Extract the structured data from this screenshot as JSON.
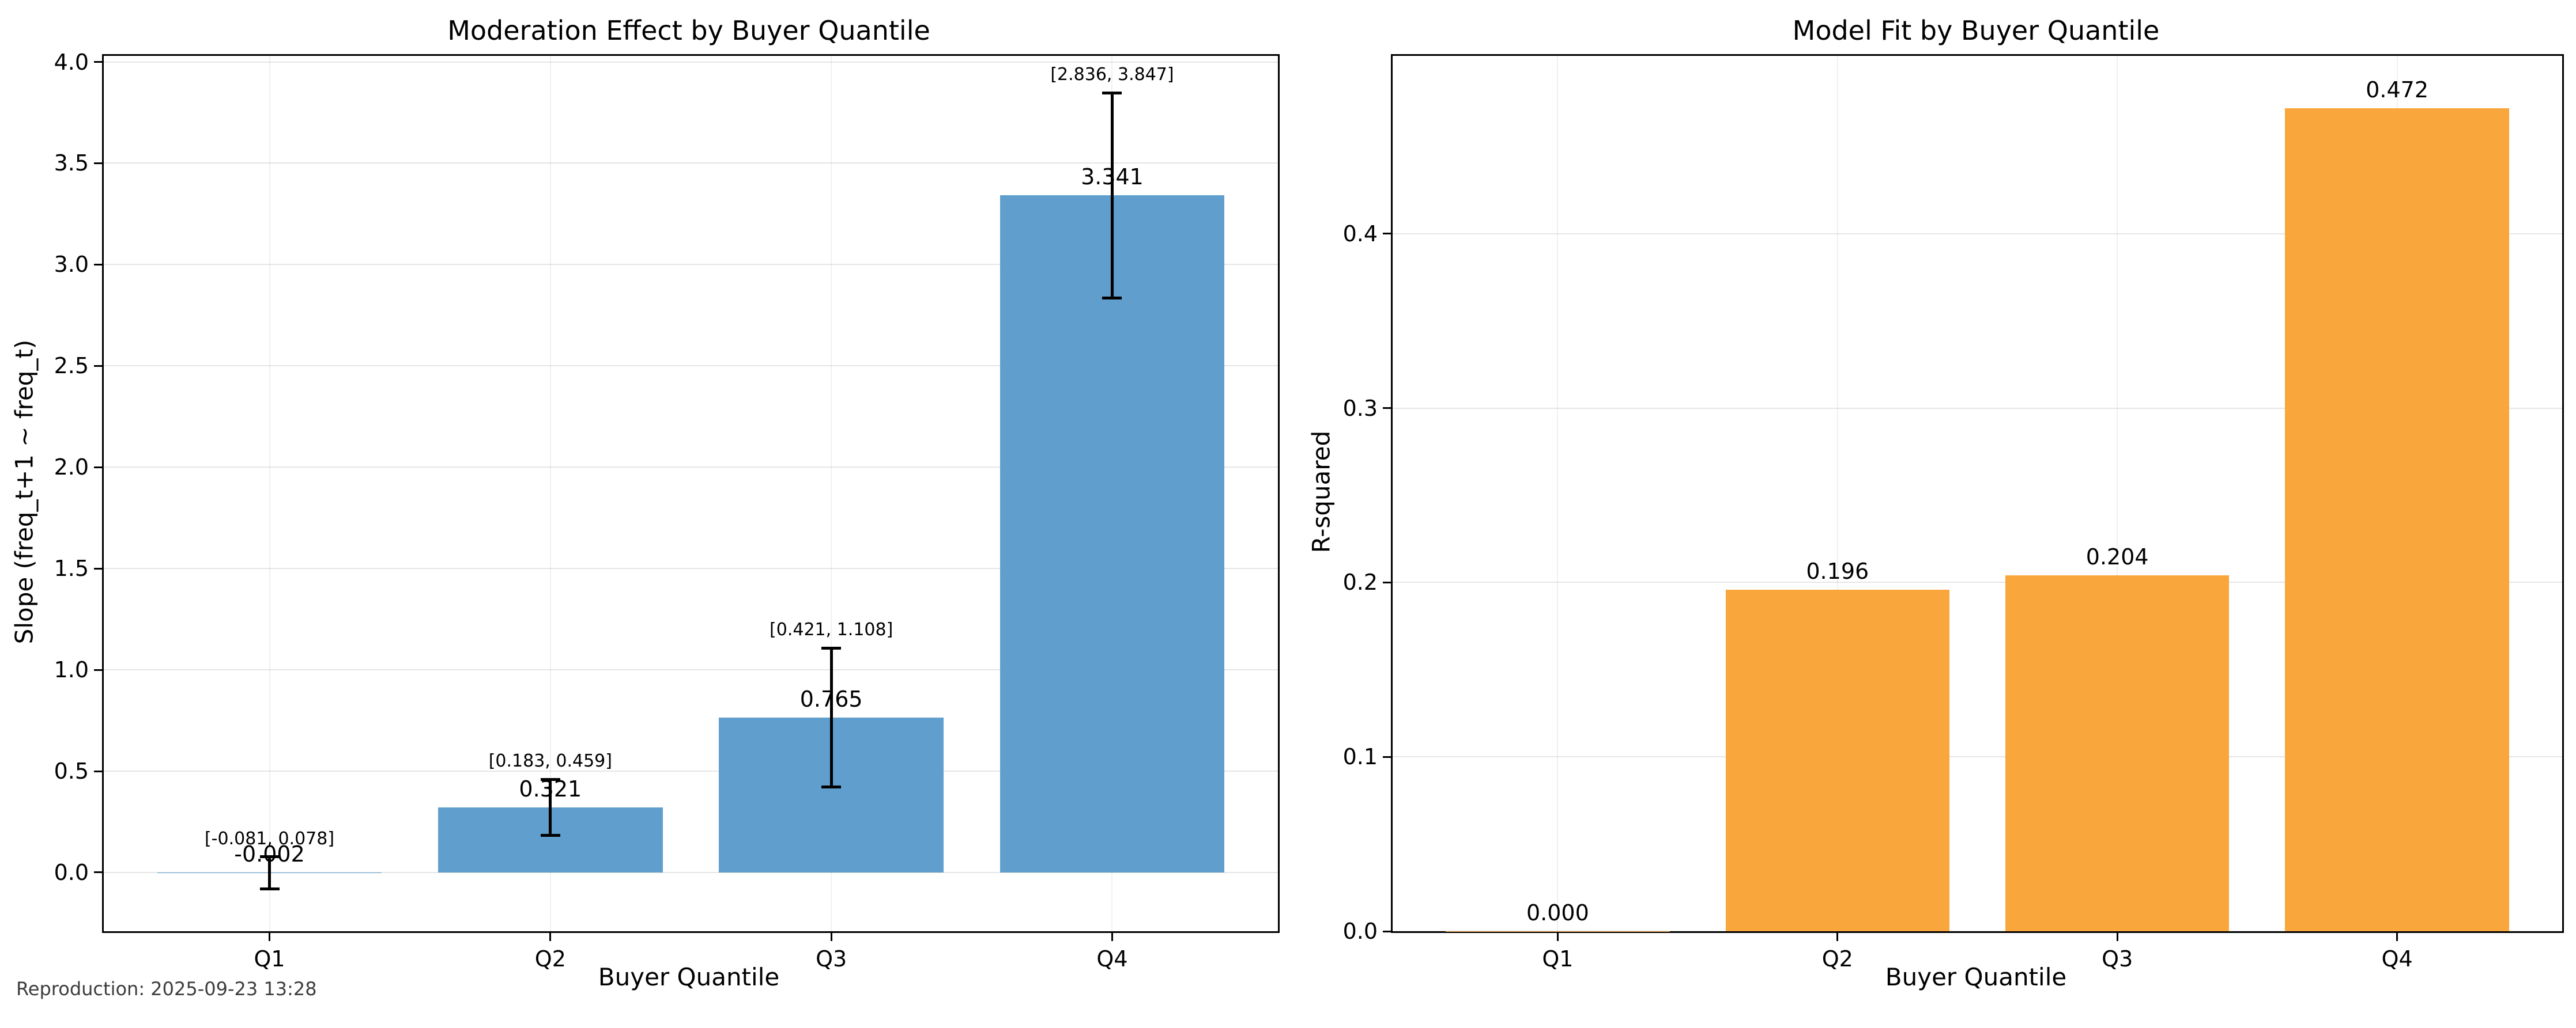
{
  "footer": "Reproduction: 2025-09-23 13:28",
  "chart_data": [
    {
      "type": "bar",
      "title": "Moderation Effect by Buyer Quantile",
      "xlabel": "Buyer Quantile",
      "ylabel": "Slope (freq_t+1 ~ freq_t)",
      "categories": [
        "Q1",
        "Q2",
        "Q3",
        "Q4"
      ],
      "values": [
        -0.002,
        0.321,
        0.765,
        3.341
      ],
      "value_labels": [
        "-0.002",
        "0.321",
        "0.765",
        "3.341"
      ],
      "ci": [
        [
          -0.081,
          0.078
        ],
        [
          0.183,
          0.459
        ],
        [
          0.421,
          1.108
        ],
        [
          2.836,
          3.847
        ]
      ],
      "ci_labels": [
        "[-0.081, 0.078]",
        "[0.183, 0.459]",
        "[0.421, 1.108]",
        "[2.836, 3.847]"
      ],
      "yticks": [
        0.0,
        0.5,
        1.0,
        1.5,
        2.0,
        2.5,
        3.0,
        3.5,
        4.0
      ],
      "ytick_labels": [
        "0.0",
        "0.5",
        "1.0",
        "1.5",
        "2.0",
        "2.5",
        "3.0",
        "3.5",
        "4.0"
      ],
      "ylim": [
        -0.29,
        4.03
      ],
      "bar_color": "#5f9ecd",
      "grid": true,
      "legend_position": "none"
    },
    {
      "type": "bar",
      "title": "Model Fit by Buyer Quantile",
      "xlabel": "Buyer Quantile",
      "ylabel": "R-squared",
      "categories": [
        "Q1",
        "Q2",
        "Q3",
        "Q4"
      ],
      "values": [
        0.0,
        0.196,
        0.204,
        0.472
      ],
      "value_labels": [
        "0.000",
        "0.196",
        "0.204",
        "0.472"
      ],
      "yticks": [
        0.0,
        0.1,
        0.2,
        0.3,
        0.4
      ],
      "ytick_labels": [
        "0.0",
        "0.1",
        "0.2",
        "0.3",
        "0.4"
      ],
      "ylim": [
        0,
        0.502
      ],
      "bar_color": "#f9a63d",
      "grid": true,
      "legend_position": "none"
    }
  ]
}
